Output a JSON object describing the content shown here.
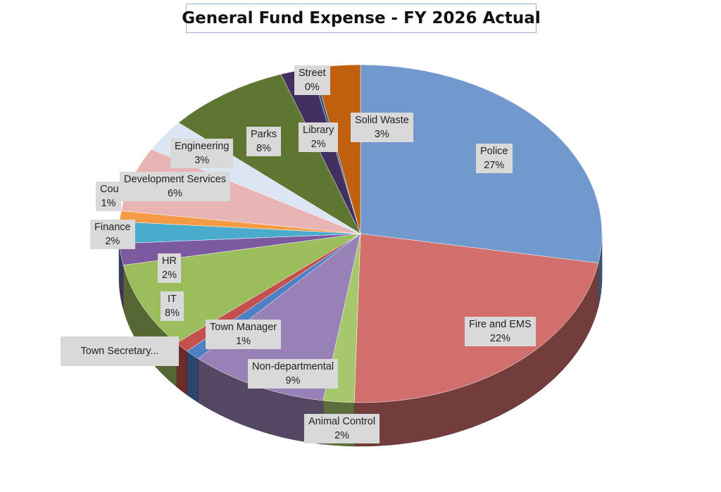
{
  "chart_data": {
    "type": "pie",
    "title": "General Fund Expense -  FY 2026 Actual",
    "slices": [
      {
        "label": "Police",
        "pct_label": "27%",
        "value": 27,
        "color": "#7199cd"
      },
      {
        "label": "Fire and EMS",
        "pct_label": "22%",
        "value": 22,
        "color": "#d06f6c"
      },
      {
        "label": "Animal Control",
        "pct_label": "2%",
        "value": 2,
        "color": "#a6c86b"
      },
      {
        "label": "Non-departmental",
        "pct_label": "9%",
        "value": 9,
        "color": "#9781b6"
      },
      {
        "label": "Town Manager",
        "pct_label": "1%",
        "value": 1,
        "color": "#4f80c4"
      },
      {
        "label": "Town Secretary...",
        "pct_label": "",
        "value": 1,
        "color": "#c4504d"
      },
      {
        "label": "IT",
        "pct_label": "8%",
        "value": 8,
        "color": "#9bbd5c"
      },
      {
        "label": "HR",
        "pct_label": "2%",
        "value": 2,
        "color": "#7c5aa0"
      },
      {
        "label": "Finance",
        "pct_label": "2%",
        "value": 2,
        "color": "#4aaccc"
      },
      {
        "label": "Cou",
        "pct_label": "1%",
        "value": 1,
        "color": "#f59b45"
      },
      {
        "label": "Development Services",
        "pct_label": "6%",
        "value": 6,
        "color": "#e8b4b3"
      },
      {
        "label": "Engineering",
        "pct_label": "3%",
        "value": 3,
        "color": "#dbe5f3"
      },
      {
        "label": "Parks",
        "pct_label": "8%",
        "value": 8,
        "color": "#5f7532"
      },
      {
        "label": "Library",
        "pct_label": "2%",
        "value": 2,
        "color": "#413060"
      },
      {
        "label": "Street",
        "pct_label": "0%",
        "value": 0.2,
        "color": "#2e5a8c"
      },
      {
        "label": "Solid Waste",
        "pct_label": "3%",
        "value": 3,
        "color": "#c0600e"
      }
    ]
  }
}
